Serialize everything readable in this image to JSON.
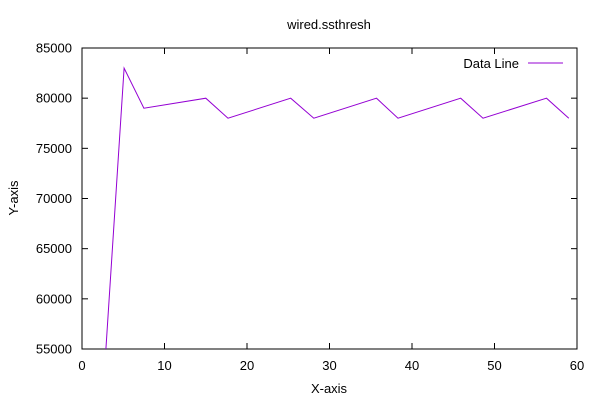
{
  "chart_data": {
    "type": "line",
    "title": "wired.ssthresh",
    "xlabel": "X-axis",
    "ylabel": "Y-axis",
    "xlim": [
      0,
      60
    ],
    "ylim": [
      55000,
      85000
    ],
    "xticks": [
      0,
      10,
      20,
      30,
      40,
      50,
      60
    ],
    "yticks": [
      55000,
      60000,
      65000,
      70000,
      75000,
      80000,
      85000
    ],
    "xtick_labels": [
      "0",
      "10",
      "20",
      "30",
      "40",
      "50",
      "60"
    ],
    "ytick_labels": [
      "55000",
      "60000",
      "65000",
      "70000",
      "75000",
      "80000",
      "85000"
    ],
    "grid": false,
    "legend_position": "top-right",
    "series": [
      {
        "name": "Data Line",
        "color": "#9400d3",
        "points": [
          [
            2.9,
            55000
          ],
          [
            5.1,
            83000
          ],
          [
            7.5,
            79000
          ],
          [
            15.0,
            80000
          ],
          [
            17.7,
            78000
          ],
          [
            25.3,
            80000
          ],
          [
            28.1,
            78000
          ],
          [
            35.7,
            80000
          ],
          [
            38.3,
            78000
          ],
          [
            45.9,
            80000
          ],
          [
            48.6,
            78000
          ],
          [
            56.3,
            80000
          ],
          [
            59.0,
            78000
          ]
        ]
      }
    ]
  }
}
